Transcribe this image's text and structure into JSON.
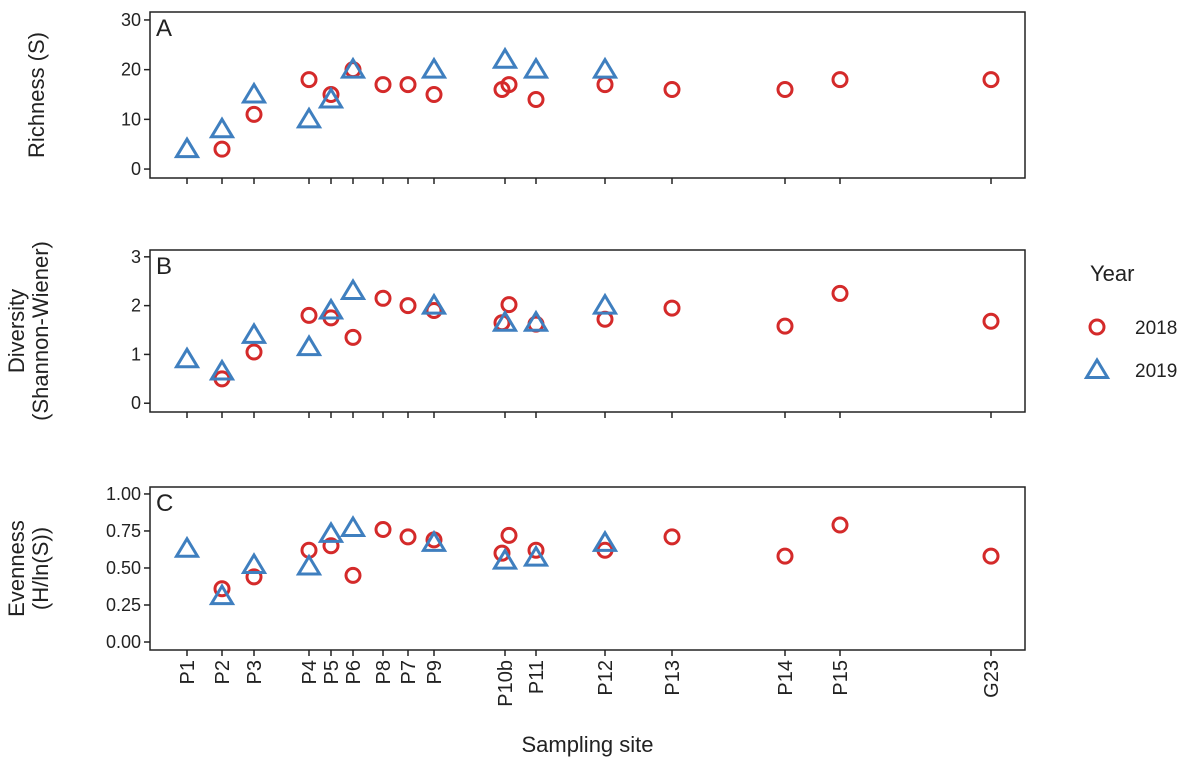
{
  "chart_data": [
    {
      "type": "scatter",
      "panel_label": "A",
      "ylabel": [
        "Richness (S)"
      ],
      "ylim": [
        -1.8,
        31.6
      ],
      "yticks": [
        0,
        10,
        20,
        30
      ],
      "series": [
        {
          "name": "2018",
          "color": "#d42a2a",
          "marker": "circle",
          "x": [
            3.5,
            6.7,
            12.2,
            14.4,
            16.6,
            19.6,
            22.1,
            24.7,
            31.5,
            32.2,
            34.9,
            41.8,
            48.5,
            59.8,
            65.3,
            80.4
          ],
          "values": [
            4,
            11,
            18,
            15,
            20,
            17,
            17,
            15,
            16,
            17,
            14,
            17,
            16,
            16,
            18,
            18
          ]
        },
        {
          "name": "2019",
          "color": "#3f7fbf",
          "marker": "triangle",
          "x": [
            0,
            3.5,
            6.7,
            12.2,
            14.4,
            16.6,
            24.7,
            31.8,
            34.9,
            41.8
          ],
          "values": [
            4,
            8,
            15,
            10,
            14,
            20,
            20,
            22,
            20,
            20
          ]
        }
      ]
    },
    {
      "type": "scatter",
      "panel_label": "B",
      "ylabel": [
        "Diversity",
        "(Shannon-Wiener)"
      ],
      "ylim": [
        -0.18,
        3.14
      ],
      "yticks": [
        0,
        1,
        2,
        3
      ],
      "legend": {
        "title": "Year",
        "position": "right"
      },
      "series": [
        {
          "name": "2018",
          "color": "#d42a2a",
          "marker": "circle",
          "x": [
            3.5,
            6.7,
            12.2,
            14.4,
            16.6,
            19.6,
            22.1,
            24.7,
            31.5,
            32.2,
            34.9,
            41.8,
            48.5,
            59.8,
            65.3,
            80.4
          ],
          "values": [
            0.5,
            1.05,
            1.8,
            1.75,
            1.35,
            2.15,
            2.0,
            1.9,
            1.65,
            2.02,
            1.62,
            1.72,
            1.95,
            1.58,
            2.25,
            1.68
          ]
        },
        {
          "name": "2019",
          "color": "#3f7fbf",
          "marker": "triangle",
          "x": [
            0,
            3.5,
            6.7,
            12.2,
            14.4,
            16.6,
            24.7,
            31.8,
            34.9,
            41.8
          ],
          "values": [
            0.9,
            0.65,
            1.4,
            1.15,
            1.9,
            2.3,
            2.0,
            1.65,
            1.65,
            2.0
          ]
        }
      ]
    },
    {
      "type": "scatter",
      "panel_label": "C",
      "ylabel": [
        "Evenness",
        "(H/ln(S))"
      ],
      "ylim": [
        -0.054,
        1.047
      ],
      "yticks": [
        {
          "value": 0,
          "label": "0.00"
        },
        {
          "value": 0.25,
          "label": "0.25"
        },
        {
          "value": 0.5,
          "label": "0.50"
        },
        {
          "value": 0.75,
          "label": "0.75"
        },
        {
          "value": 1,
          "label": "1.00"
        }
      ],
      "xlabel": "Sampling site",
      "xlim": [
        -3.7,
        83.8
      ],
      "xticks": [
        {
          "value": 0,
          "label": "P1"
        },
        {
          "value": 3.5,
          "label": "P2"
        },
        {
          "value": 6.7,
          "label": "P3"
        },
        {
          "value": 12.2,
          "label": "P4"
        },
        {
          "value": 14.4,
          "label": "P5"
        },
        {
          "value": 16.6,
          "label": "P6"
        },
        {
          "value": 19.6,
          "label": "P8"
        },
        {
          "value": 22.1,
          "label": "P7"
        },
        {
          "value": 24.7,
          "label": "P9"
        },
        {
          "value": 31.8,
          "label": "P10b"
        },
        {
          "value": 34.9,
          "label": "P11"
        },
        {
          "value": 41.8,
          "label": "P12"
        },
        {
          "value": 48.5,
          "label": "P13"
        },
        {
          "value": 59.8,
          "label": "P14"
        },
        {
          "value": 65.3,
          "label": "P15"
        },
        {
          "value": 80.4,
          "label": "G23"
        }
      ],
      "series": [
        {
          "name": "2018",
          "color": "#d42a2a",
          "marker": "circle",
          "x": [
            3.5,
            6.7,
            12.2,
            14.4,
            16.6,
            19.6,
            22.1,
            24.7,
            31.5,
            32.2,
            34.9,
            41.8,
            48.5,
            59.8,
            65.3,
            80.4
          ],
          "values": [
            0.36,
            0.44,
            0.62,
            0.65,
            0.45,
            0.76,
            0.71,
            0.69,
            0.6,
            0.72,
            0.62,
            0.62,
            0.71,
            0.58,
            0.79,
            0.58
          ]
        },
        {
          "name": "2019",
          "color": "#3f7fbf",
          "marker": "triangle",
          "x": [
            0,
            3.5,
            6.7,
            12.2,
            14.4,
            16.6,
            24.7,
            31.8,
            34.9,
            41.8
          ],
          "values": [
            0.63,
            0.31,
            0.52,
            0.51,
            0.73,
            0.77,
            0.67,
            0.55,
            0.57,
            0.67
          ]
        }
      ]
    }
  ]
}
